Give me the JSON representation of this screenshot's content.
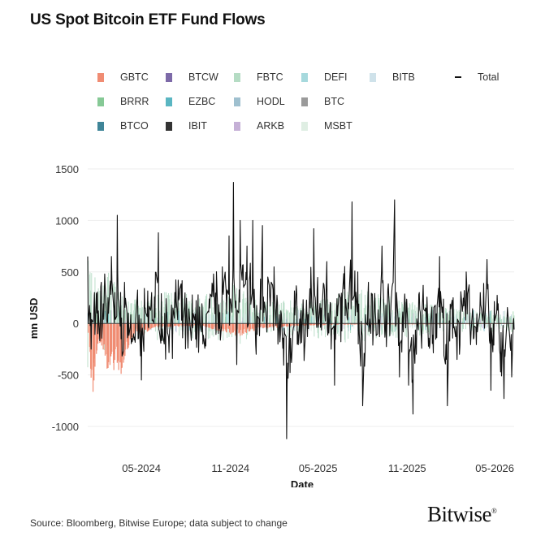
{
  "title": "US Spot Bitcoin ETF Fund Flows",
  "footer": "Source: Bloomberg, Bitwise Europe; data subject to change",
  "logo": "Bitwise",
  "colors": {
    "GBTC": "#f08c73",
    "BTCW": "#7d6aa8",
    "FBTC": "#b5dcc4",
    "DEFI": "#a6d9dd",
    "BITB": "#cfe2ea",
    "BRRR": "#86c996",
    "EZBC": "#5ab6c2",
    "HODL": "#9fc0cf",
    "BTC": "#9a9a9a",
    "BTCO": "#3f8598",
    "IBIT": "#333333",
    "ARKB": "#c5b0d6",
    "MSBT": "#dfeee3",
    "Total": "#111111",
    "grid": "#eeeeee",
    "zero": "#444444"
  },
  "chart_data": {
    "type": "bar+line",
    "title": "US Spot Bitcoin ETF Fund Flows",
    "xlabel": "Date",
    "ylabel": "mn USD",
    "ylim": [
      -1150,
      1500
    ],
    "yticks": [
      -1000,
      -500,
      0,
      500,
      1000,
      1500
    ],
    "xlim": [
      "2024-01-11",
      "2026-06-10"
    ],
    "xticks": [
      "05-2024",
      "11-2024",
      "05-2025",
      "11-2025",
      "05-2026"
    ],
    "legend": [
      "GBTC",
      "BTCW",
      "FBTC",
      "DEFI",
      "BITB",
      "BRRR",
      "EZBC",
      "HODL",
      "BTC",
      "BTCO",
      "IBIT",
      "ARKB",
      "MSBT",
      "Total"
    ],
    "legend_placement": "top",
    "grid": true,
    "series_note": "daily stacked bars per ETF; black line is the daily Total",
    "total_keypoints": [
      [
        "2024-01-11",
        650
      ],
      [
        "2024-01-18",
        -250
      ],
      [
        "2024-01-25",
        300
      ],
      [
        "2024-02-01",
        -100
      ],
      [
        "2024-02-08",
        400
      ],
      [
        "2024-02-15",
        480
      ],
      [
        "2024-02-22",
        250
      ],
      [
        "2024-02-29",
        650
      ],
      [
        "2024-03-07",
        300
      ],
      [
        "2024-03-12",
        1050
      ],
      [
        "2024-03-20",
        -150
      ],
      [
        "2024-03-27",
        400
      ],
      [
        "2024-04-04",
        100
      ],
      [
        "2024-04-15",
        -100
      ],
      [
        "2024-04-24",
        -150
      ],
      [
        "2024-05-01",
        -550
      ],
      [
        "2024-05-10",
        100
      ],
      [
        "2024-05-22",
        300
      ],
      [
        "2024-06-05",
        880
      ],
      [
        "2024-06-17",
        -200
      ],
      [
        "2024-07-05",
        150
      ],
      [
        "2024-07-16",
        420
      ],
      [
        "2024-08-05",
        -240
      ],
      [
        "2024-08-20",
        90
      ],
      [
        "2024-09-05",
        -200
      ],
      [
        "2024-09-19",
        150
      ],
      [
        "2024-09-27",
        480
      ],
      [
        "2024-10-15",
        550
      ],
      [
        "2024-10-29",
        850
      ],
      [
        "2024-11-07",
        1370
      ],
      [
        "2024-11-14",
        -400
      ],
      [
        "2024-11-21",
        1000
      ],
      [
        "2024-12-05",
        750
      ],
      [
        "2024-12-17",
        1000
      ],
      [
        "2024-12-24",
        -300
      ],
      [
        "2025-01-06",
        950
      ],
      [
        "2025-01-17",
        450
      ],
      [
        "2025-01-30",
        550
      ],
      [
        "2025-02-11",
        -180
      ],
      [
        "2025-02-25",
        -1120
      ],
      [
        "2025-03-07",
        -380
      ],
      [
        "2025-03-18",
        280
      ],
      [
        "2025-04-03",
        -250
      ],
      [
        "2025-04-22",
        920
      ],
      [
        "2025-05-07",
        150
      ],
      [
        "2025-05-19",
        600
      ],
      [
        "2025-06-04",
        -600
      ],
      [
        "2025-06-12",
        200
      ],
      [
        "2025-07-10",
        1180
      ],
      [
        "2025-07-22",
        500
      ],
      [
        "2025-08-01",
        -800
      ],
      [
        "2025-08-13",
        400
      ],
      [
        "2025-08-25",
        200
      ],
      [
        "2025-09-10",
        750
      ],
      [
        "2025-09-24",
        250
      ],
      [
        "2025-10-06",
        1200
      ],
      [
        "2025-10-16",
        -520
      ],
      [
        "2025-10-28",
        200
      ],
      [
        "2025-11-04",
        -600
      ],
      [
        "2025-11-13",
        -880
      ],
      [
        "2025-11-20",
        -300
      ],
      [
        "2025-11-26",
        300
      ],
      [
        "2025-12-08",
        120
      ],
      [
        "2025-12-18",
        -200
      ],
      [
        "2026-01-07",
        650
      ],
      [
        "2026-01-23",
        -800
      ],
      [
        "2026-02-04",
        250
      ],
      [
        "2026-02-17",
        -300
      ],
      [
        "2026-03-03",
        500
      ],
      [
        "2026-03-18",
        -150
      ],
      [
        "2026-04-01",
        300
      ],
      [
        "2026-04-15",
        620
      ],
      [
        "2026-04-23",
        -650
      ],
      [
        "2026-05-05",
        100
      ],
      [
        "2026-05-12",
        -300
      ],
      [
        "2026-05-20",
        -730
      ],
      [
        "2026-05-29",
        40
      ],
      [
        "2026-06-05",
        -520
      ]
    ],
    "gbtc_keypoints": [
      [
        "2024-01-11",
        0
      ],
      [
        "2024-01-16",
        -450
      ],
      [
        "2024-01-22",
        -550
      ],
      [
        "2024-01-29",
        -300
      ],
      [
        "2024-02-05",
        -150
      ],
      [
        "2024-02-12",
        -200
      ],
      [
        "2024-02-20",
        -350
      ],
      [
        "2024-02-27",
        -400
      ],
      [
        "2024-03-05",
        -350
      ],
      [
        "2024-03-12",
        -300
      ],
      [
        "2024-03-19",
        -500
      ],
      [
        "2024-03-27",
        -250
      ],
      [
        "2024-04-03",
        -200
      ],
      [
        "2024-04-10",
        -150
      ],
      [
        "2024-04-17",
        -80
      ],
      [
        "2024-05-01",
        -100
      ],
      [
        "2024-06-01",
        -30
      ],
      [
        "2024-09-01",
        -20
      ],
      [
        "2024-11-20",
        -100
      ],
      [
        "2025-01-01",
        -40
      ],
      [
        "2025-06-01",
        -10
      ],
      [
        "2026-06-10",
        -5
      ]
    ],
    "fbtc_keypoints": [
      [
        "2024-01-11",
        550
      ],
      [
        "2024-02-01",
        250
      ],
      [
        "2024-02-28",
        380
      ],
      [
        "2024-03-12",
        280
      ],
      [
        "2024-04-01",
        150
      ],
      [
        "2024-06-05",
        220
      ],
      [
        "2024-10-20",
        200
      ],
      [
        "2024-11-07",
        300
      ],
      [
        "2024-12-10",
        200
      ],
      [
        "2025-01-20",
        150
      ],
      [
        "2025-05-20",
        180
      ],
      [
        "2025-07-15",
        250
      ],
      [
        "2025-10-06",
        180
      ],
      [
        "2026-01-07",
        120
      ],
      [
        "2026-06-10",
        60
      ]
    ]
  }
}
